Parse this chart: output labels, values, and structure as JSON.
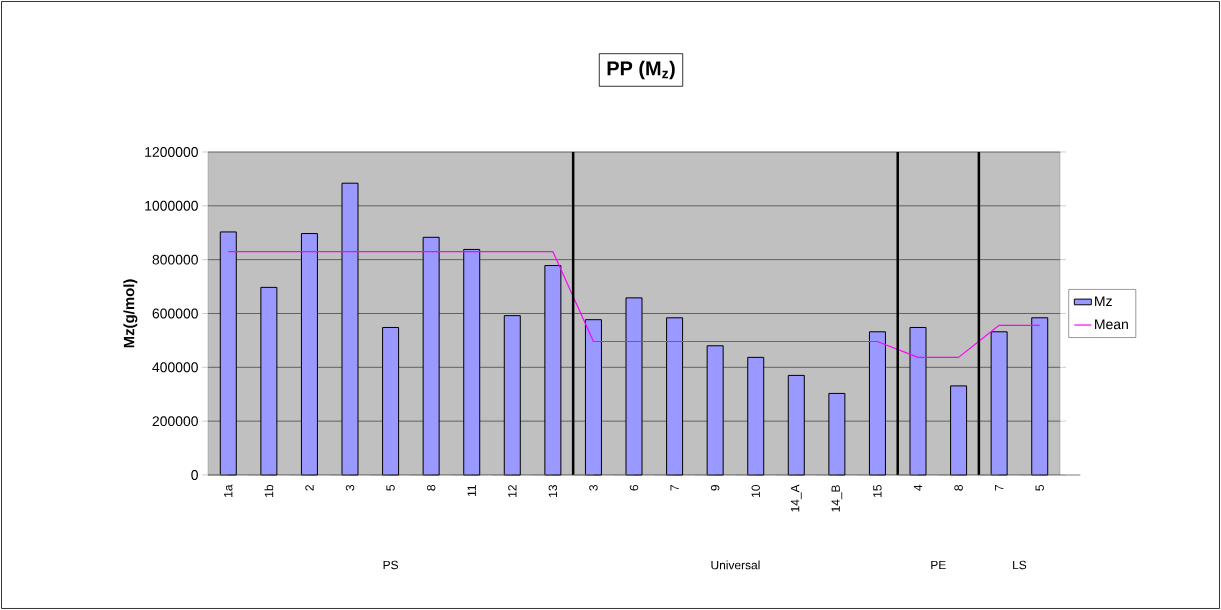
{
  "chart_data": {
    "type": "bar",
    "title": "PP (M$_{z}$)",
    "ylabel": "Mz(g/mol)",
    "categories": [
      "1a",
      "1b",
      "2",
      "3",
      "5",
      "8",
      "11",
      "12",
      "13",
      "3",
      "6",
      "7",
      "9",
      "10",
      "14_A",
      "14_B",
      "15",
      "4",
      "8",
      "7",
      "5"
    ],
    "series": [
      {
        "name": "Mz",
        "color": "#9999ff",
        "values": [
          903000,
          697000,
          897000,
          1084000,
          548000,
          883000,
          838000,
          592000,
          778000,
          577000,
          658000,
          584000,
          480000,
          437000,
          370000,
          303000,
          532000,
          548000,
          331000,
          532000,
          584000
        ]
      },
      {
        "name": "Mean",
        "type": "line",
        "color": "#ff00ff",
        "values": [
          830000,
          830000,
          830000,
          830000,
          830000,
          830000,
          830000,
          830000,
          830000,
          496000,
          496000,
          496000,
          496000,
          496000,
          496000,
          496000,
          496000,
          437000,
          437000,
          556000,
          556000
        ]
      }
    ],
    "ylim": [
      0,
      1200000
    ],
    "yticks": [
      0,
      200000,
      400000,
      600000,
      800000,
      1000000,
      1200000
    ],
    "grid": "y",
    "legend": "right",
    "annotations": [
      "PS",
      "Universal",
      "PE",
      "LS"
    ]
  }
}
